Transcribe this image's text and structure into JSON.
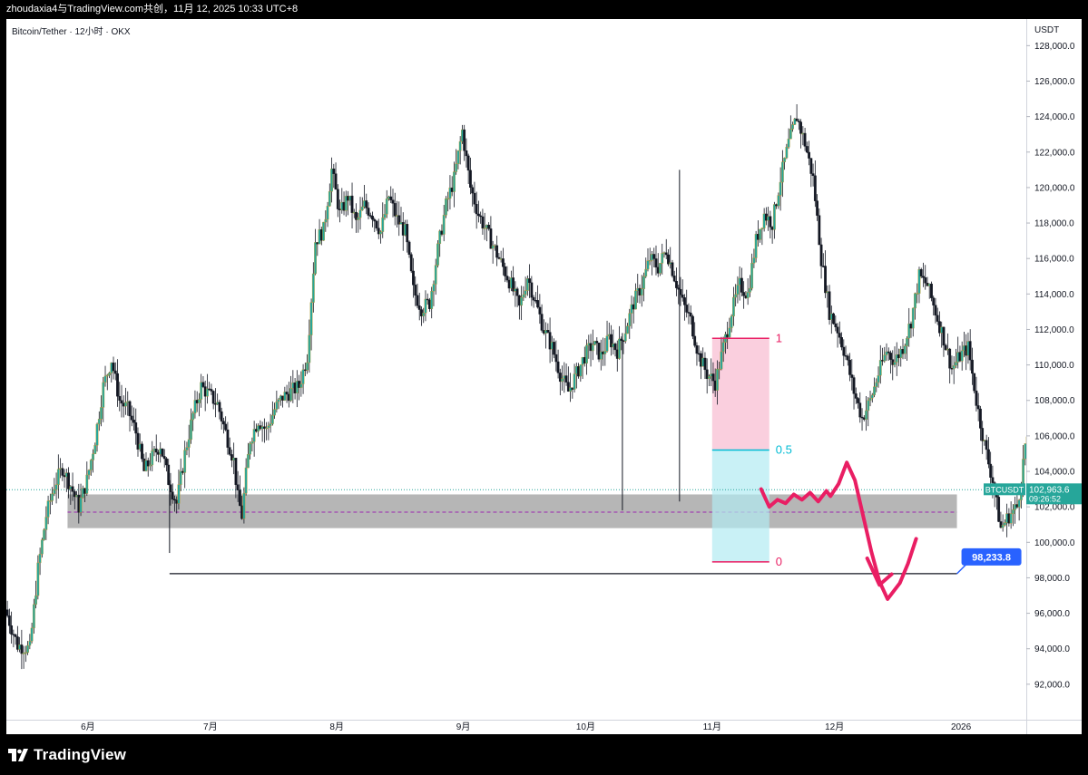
{
  "header": {
    "share_text": "zhoudaxia4与TradingView.com共创，11月 12, 2025 10:33 UTC+8"
  },
  "chart": {
    "symbol_label": "Bitcoin/Tether · 12小时 · OKX"
  },
  "branding": {
    "logo_text": "TradingView",
    "logo_icon": "tradingview-logo-icon"
  },
  "colors": {
    "up": "#26a69a",
    "down": "#131722",
    "wick": "#131722",
    "zone": "#9e9e9e",
    "fib_top": "#f8bbd0",
    "fib_bottom": "#b2ebf2",
    "fib_line_top": "#e91e63",
    "fib_line_mid": "#00bcd4",
    "drawing": "#e91e63",
    "price_label": "#26a69a",
    "target_label": "#2962ff"
  },
  "chart_data": {
    "type": "candlestick",
    "title": "Bitcoin/Tether · 12小时 · OKX",
    "y_unit_label": "USDT",
    "ylim": [
      90000,
      129500
    ],
    "y_ticks": [
      "92,000.0",
      "94,000.0",
      "96,000.0",
      "98,000.0",
      "100,000.0",
      "102,000.0",
      "104,000.0",
      "106,000.0",
      "108,000.0",
      "110,000.0",
      "112,000.0",
      "114,000.0",
      "116,000.0",
      "118,000.0",
      "120,000.0",
      "122,000.0",
      "124,000.0",
      "126,000.0",
      "128,000.0"
    ],
    "y_tick_values": [
      92000,
      94000,
      96000,
      98000,
      100000,
      102000,
      104000,
      106000,
      108000,
      110000,
      112000,
      114000,
      116000,
      118000,
      120000,
      122000,
      124000,
      126000,
      128000
    ],
    "x_ticks": [
      "6月",
      "7月",
      "8月",
      "9月",
      "10月",
      "11月",
      "12月",
      "2026"
    ],
    "x_tick_dates": [
      "2025-06-01",
      "2025-07-01",
      "2025-08-01",
      "2025-09-01",
      "2025-10-01",
      "2025-11-01",
      "2025-12-01",
      "2026-01-01"
    ],
    "x_range": [
      "2025-05-12",
      "2026-01-17"
    ],
    "grid": false,
    "price_path": [
      [
        "2025-05-12",
        96200
      ],
      [
        "2025-05-15",
        94200
      ],
      [
        "2025-05-18",
        94000
      ],
      [
        "2025-05-20",
        98500
      ],
      [
        "2025-05-22",
        101500
      ],
      [
        "2025-05-24",
        103200
      ],
      [
        "2025-05-26",
        104200
      ],
      [
        "2025-05-28",
        103200
      ],
      [
        "2025-05-30",
        102000
      ],
      [
        "2025-06-01",
        103500
      ],
      [
        "2025-06-03",
        105800
      ],
      [
        "2025-06-05",
        108800
      ],
      [
        "2025-06-07",
        110300
      ],
      [
        "2025-06-09",
        108000
      ],
      [
        "2025-06-11",
        107500
      ],
      [
        "2025-06-13",
        106200
      ],
      [
        "2025-06-15",
        104000
      ],
      [
        "2025-06-17",
        104800
      ],
      [
        "2025-06-19",
        105500
      ],
      [
        "2025-06-21",
        103500
      ],
      [
        "2025-06-23",
        102200
      ],
      [
        "2025-06-25",
        105000
      ],
      [
        "2025-06-27",
        107200
      ],
      [
        "2025-06-29",
        108800
      ],
      [
        "2025-07-01",
        108300
      ],
      [
        "2025-07-03",
        107800
      ],
      [
        "2025-07-05",
        106200
      ],
      [
        "2025-07-07",
        104600
      ],
      [
        "2025-07-08",
        102500
      ],
      [
        "2025-07-09",
        101500
      ],
      [
        "2025-07-10",
        103800
      ],
      [
        "2025-07-11",
        105800
      ],
      [
        "2025-07-13",
        106900
      ],
      [
        "2025-07-15",
        106300
      ],
      [
        "2025-07-17",
        107500
      ],
      [
        "2025-07-19",
        108200
      ],
      [
        "2025-07-21",
        108500
      ],
      [
        "2025-07-23",
        108800
      ],
      [
        "2025-07-25",
        110500
      ],
      [
        "2025-07-27",
        117000
      ],
      [
        "2025-07-29",
        117600
      ],
      [
        "2025-07-31",
        121000
      ],
      [
        "2025-08-02",
        118500
      ],
      [
        "2025-08-04",
        119500
      ],
      [
        "2025-08-06",
        118000
      ],
      [
        "2025-08-08",
        119000
      ],
      [
        "2025-08-10",
        118500
      ],
      [
        "2025-08-12",
        117500
      ],
      [
        "2025-08-14",
        119500
      ],
      [
        "2025-08-16",
        118200
      ],
      [
        "2025-08-18",
        117500
      ],
      [
        "2025-08-20",
        114200
      ],
      [
        "2025-08-22",
        113200
      ],
      [
        "2025-08-24",
        113500
      ],
      [
        "2025-08-26",
        116500
      ],
      [
        "2025-08-28",
        119000
      ],
      [
        "2025-08-30",
        120500
      ],
      [
        "2025-09-01",
        123200
      ],
      [
        "2025-09-03",
        120000
      ],
      [
        "2025-09-05",
        118500
      ],
      [
        "2025-09-07",
        117500
      ],
      [
        "2025-09-09",
        116500
      ],
      [
        "2025-09-11",
        115500
      ],
      [
        "2025-09-13",
        114500
      ],
      [
        "2025-09-15",
        113200
      ],
      [
        "2025-09-17",
        115000
      ],
      [
        "2025-09-19",
        113500
      ],
      [
        "2025-09-21",
        112000
      ],
      [
        "2025-09-23",
        111000
      ],
      [
        "2025-09-25",
        109500
      ],
      [
        "2025-09-27",
        108500
      ],
      [
        "2025-09-28",
        109000
      ],
      [
        "2025-10-01",
        110500
      ],
      [
        "2025-10-03",
        111200
      ],
      [
        "2025-10-05",
        110500
      ],
      [
        "2025-10-07",
        111500
      ],
      [
        "2025-10-09",
        110800
      ],
      [
        "2025-10-11",
        112000
      ],
      [
        "2025-10-13",
        113500
      ],
      [
        "2025-10-15",
        114500
      ],
      [
        "2025-10-17",
        116000
      ],
      [
        "2025-10-19",
        115500
      ],
      [
        "2025-10-21",
        116500
      ],
      [
        "2025-10-23",
        115000
      ],
      [
        "2025-10-25",
        113500
      ],
      [
        "2025-10-27",
        112500
      ],
      [
        "2025-10-29",
        110500
      ],
      [
        "2025-10-31",
        109500
      ],
      [
        "2025-11-02",
        109000
      ],
      [
        "2025-11-04",
        111000
      ],
      [
        "2025-11-06",
        113000
      ],
      [
        "2025-11-08",
        114500
      ],
      [
        "2025-11-10",
        114000
      ],
      [
        "2025-11-12",
        117000
      ],
      [
        "2025-11-14",
        118500
      ],
      [
        "2025-11-16",
        118000
      ],
      [
        "2025-11-18",
        120500
      ],
      [
        "2025-11-20",
        122500
      ],
      [
        "2025-11-22",
        124000
      ],
      [
        "2025-11-24",
        122500
      ],
      [
        "2025-11-26",
        120500
      ],
      [
        "2025-11-28",
        116000
      ],
      [
        "2025-11-30",
        113000
      ],
      [
        "2025-12-02",
        112000
      ],
      [
        "2025-12-04",
        110500
      ],
      [
        "2025-12-06",
        108500
      ],
      [
        "2025-12-08",
        107000
      ],
      [
        "2025-12-10",
        108000
      ],
      [
        "2025-12-12",
        109500
      ],
      [
        "2025-12-14",
        110800
      ],
      [
        "2025-12-16",
        110200
      ],
      [
        "2025-12-18",
        111000
      ],
      [
        "2025-12-20",
        112500
      ],
      [
        "2025-12-22",
        115000
      ],
      [
        "2025-12-24",
        114500
      ],
      [
        "2025-12-26",
        113000
      ],
      [
        "2025-12-28",
        111500
      ],
      [
        "2025-12-30",
        109800
      ],
      [
        "2026-01-01",
        110500
      ],
      [
        "2026-01-03",
        111000
      ],
      [
        "2026-01-05",
        108000
      ],
      [
        "2026-01-07",
        105500
      ],
      [
        "2026-01-09",
        103500
      ],
      [
        "2026-01-11",
        100800
      ],
      [
        "2026-01-13",
        101500
      ],
      [
        "2026-01-15",
        102000
      ],
      [
        "2026-01-16",
        103500
      ],
      [
        "2026-01-17",
        105500
      ]
    ],
    "current_price": {
      "symbol": "BTCUSDT",
      "value": 102963.6,
      "label": "102,963.6",
      "countdown": "09:26:52"
    },
    "support_zone": {
      "low": 100800,
      "high": 102700,
      "midline": 101700
    },
    "support_line": {
      "value": 98233.8,
      "start": "2025-06-21",
      "end": "2025-12-31"
    },
    "fibonacci": {
      "start": "2025-11-01",
      "end": "2025-11-15",
      "levels": [
        {
          "label": "1",
          "value": 111500
        },
        {
          "label": "0.5",
          "value": 105200
        },
        {
          "label": "0",
          "value": 98900
        }
      ]
    },
    "target_label": "98,233.8",
    "projection": [
      [
        "2025-11-13",
        103000
      ],
      [
        "2025-11-15",
        102000
      ],
      [
        "2025-11-17",
        102400
      ],
      [
        "2025-11-19",
        102200
      ],
      [
        "2025-11-21",
        102700
      ],
      [
        "2025-11-23",
        102400
      ],
      [
        "2025-11-25",
        102800
      ],
      [
        "2025-11-27",
        102300
      ],
      [
        "2025-11-29",
        102900
      ],
      [
        "2025-11-30",
        102600
      ],
      [
        "2025-12-02",
        103300
      ],
      [
        "2025-12-04",
        104500
      ],
      [
        "2025-12-06",
        103500
      ],
      [
        "2025-12-08",
        101500
      ],
      [
        "2025-12-10",
        99500
      ],
      [
        "2025-12-12",
        97800
      ],
      [
        "2025-12-14",
        96800
      ],
      [
        "2025-12-17",
        97700
      ],
      [
        "2025-12-19",
        98800
      ],
      [
        "2025-12-21",
        100200
      ]
    ],
    "projection_arrowhead": [
      [
        "2025-12-09",
        99100
      ],
      [
        "2025-12-12",
        97600
      ],
      [
        "2025-12-15",
        98200
      ]
    ]
  }
}
